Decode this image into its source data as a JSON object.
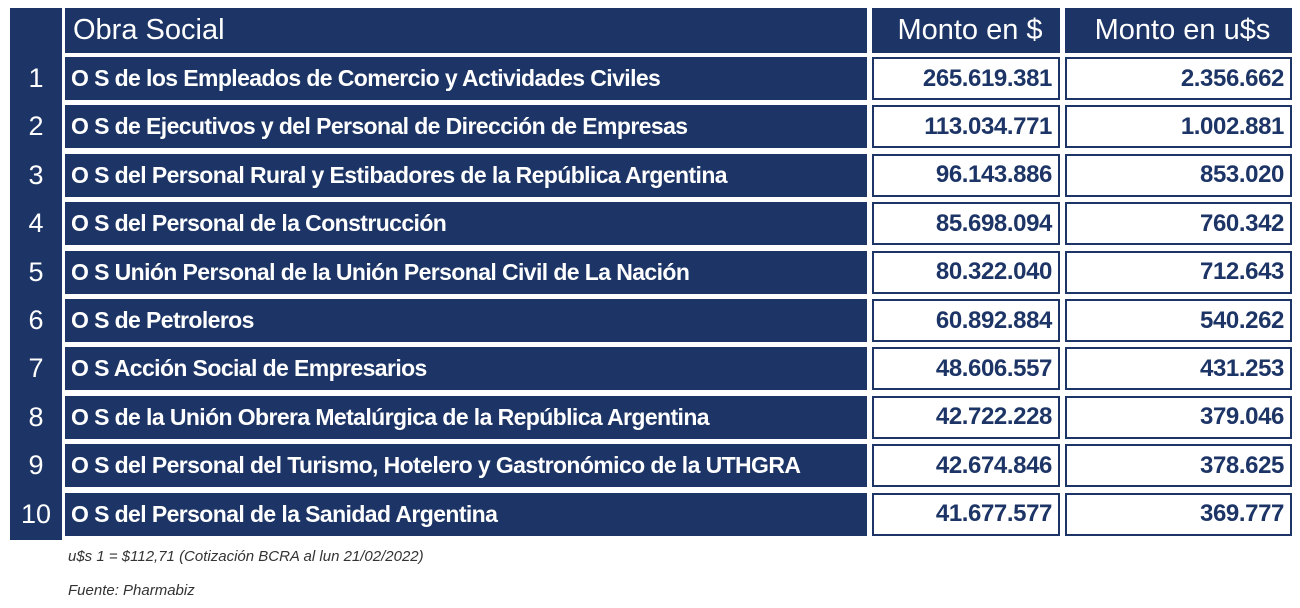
{
  "table": {
    "header": [
      "Obra Social",
      "Monto en $",
      "Monto en u$s"
    ],
    "rows": [
      [
        "1",
        "O S de los Empleados de Comercio y Actividades Civiles",
        "265.619.381",
        "2.356.662"
      ],
      [
        "2",
        "O S de Ejecutivos y del Personal de Dirección de Empresas",
        "113.034.771",
        "1.002.881"
      ],
      [
        "3",
        "O S del Personal Rural y Estibadores de la República Argentina",
        "96.143.886",
        "853.020"
      ],
      [
        "4",
        "O S del Personal de la Construcción",
        "85.698.094",
        "760.342"
      ],
      [
        "5",
        "O S Unión Personal de la Unión Personal Civil de La Nación",
        "80.322.040",
        "712.643"
      ],
      [
        "6",
        "O S de Petroleros",
        "60.892.884",
        "540.262"
      ],
      [
        "7",
        "O S Acción Social de Empresarios",
        "48.606.557",
        "431.253"
      ],
      [
        "8",
        "O S de la Unión Obrera Metalúrgica de la República Argentina",
        "42.722.228",
        "379.046"
      ],
      [
        "9",
        "O S del Personal del Turismo, Hotelero y Gastronómico de la UTHGRA",
        "42.674.846",
        "378.625"
      ],
      [
        "10",
        "O S del Personal de la Sanidad Argentina",
        "41.677.577",
        "369.777"
      ]
    ]
  },
  "notes": [
    "u$s 1 = $112,71 (Cotización BCRA al lun 21/02/2022)",
    "Fuente: Pharmabiz"
  ]
}
